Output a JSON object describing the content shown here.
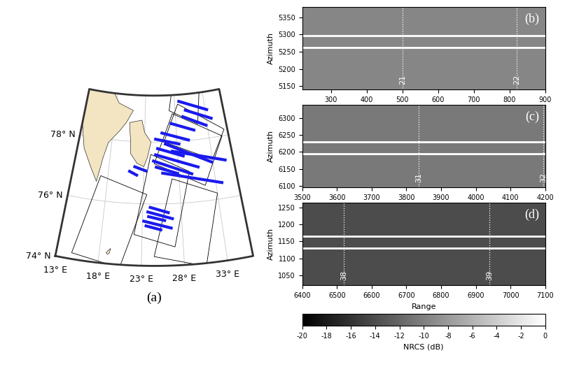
{
  "chart_data": [
    {
      "type": "map",
      "label": "(a)",
      "lon_lim": [
        13,
        36
      ],
      "lat_lim": [
        74,
        79.5
      ],
      "lat_ticks": [
        {
          "value": 74,
          "label": "74° N"
        },
        {
          "value": 76,
          "label": "76° N"
        },
        {
          "value": 78,
          "label": "78° N"
        }
      ],
      "lon_ticks": [
        {
          "value": 13,
          "label": "13° E"
        },
        {
          "value": 18,
          "label": "18° E"
        },
        {
          "value": 23,
          "label": "23° E"
        },
        {
          "value": 28,
          "label": "28° E"
        },
        {
          "value": 33,
          "label": "33° E"
        }
      ],
      "land": {
        "color": "#f3e4c2",
        "polygons": [
          [
            [
              13.0,
              79.5
            ],
            [
              17.5,
              79.5
            ],
            [
              18.5,
              79.2
            ],
            [
              21.0,
              79.0
            ],
            [
              20.0,
              78.6
            ],
            [
              19.0,
              78.3
            ],
            [
              17.5,
              77.9
            ],
            [
              17.0,
              77.4
            ],
            [
              16.5,
              76.6
            ],
            [
              15.5,
              77.0
            ],
            [
              14.0,
              77.6
            ],
            [
              13.5,
              78.0
            ],
            [
              13.0,
              78.4
            ]
          ],
          [
            [
              20.5,
              78.6
            ],
            [
              22.5,
              78.7
            ],
            [
              23.0,
              78.3
            ],
            [
              24.0,
              78.0
            ],
            [
              23.5,
              77.5
            ],
            [
              23.0,
              77.2
            ],
            [
              22.0,
              77.3
            ],
            [
              21.0,
              77.6
            ],
            [
              20.8,
              78.1
            ]
          ],
          [
            [
              18.8,
              74.35
            ],
            [
              19.3,
              74.5
            ],
            [
              19.2,
              74.35
            ],
            [
              19.0,
              74.3
            ]
          ]
        ]
      },
      "swaths": {
        "color": "#000000",
        "polygons": [
          [
            [
              22.0,
              75.0
            ],
            [
              27.0,
              74.6
            ],
            [
              29.5,
              77.0
            ],
            [
              24.0,
              77.6
            ]
          ],
          [
            [
              24.5,
              74.3
            ],
            [
              30.5,
              73.9
            ],
            [
              33.0,
              76.2
            ],
            [
              27.0,
              76.8
            ]
          ],
          [
            [
              24.5,
              77.3
            ],
            [
              31.5,
              76.5
            ],
            [
              35.0,
              78.0
            ],
            [
              27.5,
              78.9
            ]
          ],
          [
            [
              26.0,
              78.0
            ],
            [
              33.0,
              77.3
            ],
            [
              35.5,
              78.2
            ],
            [
              28.5,
              79.2
            ]
          ],
          [
            [
              14.8,
              74.2
            ],
            [
              20.5,
              73.9
            ],
            [
              23.5,
              76.3
            ],
            [
              17.0,
              76.8
            ]
          ],
          [
            [
              27.0,
              79.0
            ],
            [
              31.5,
              78.5
            ],
            [
              32.5,
              79.6
            ],
            [
              28.0,
              80.0
            ]
          ]
        ]
      },
      "tracks": {
        "color": "#1a1aee",
        "segments": [
          [
            [
              28.5,
              79.3
            ],
            [
              33.5,
              78.9
            ]
          ],
          [
            [
              29.5,
              79.0
            ],
            [
              34.0,
              78.6
            ]
          ],
          [
            [
              29.0,
              78.8
            ],
            [
              33.0,
              78.4
            ]
          ],
          [
            [
              27.0,
              78.6
            ],
            [
              31.0,
              78.3
            ]
          ],
          [
            [
              25.5,
              78.3
            ],
            [
              30.0,
              78.0
            ]
          ],
          [
            [
              24.5,
              78.1
            ],
            [
              28.5,
              77.9
            ]
          ],
          [
            [
              26.0,
              77.95
            ],
            [
              33.0,
              77.2
            ]
          ],
          [
            [
              24.8,
              77.8
            ],
            [
              29.0,
              77.5
            ]
          ],
          [
            [
              24.5,
              77.6
            ],
            [
              31.0,
              77.1
            ]
          ],
          [
            [
              24.2,
              77.4
            ],
            [
              30.0,
              76.9
            ]
          ],
          [
            [
              24.6,
              77.2
            ],
            [
              28.0,
              76.95
            ]
          ],
          [
            [
              25.5,
              77.0
            ],
            [
              34.0,
              76.5
            ]
          ],
          [
            [
              27.0,
              77.7
            ],
            [
              35.0,
              77.2
            ]
          ],
          [
            [
              21.5,
              77.2
            ],
            [
              23.5,
              77.05
            ]
          ],
          [
            [
              20.8,
              77.05
            ],
            [
              22.2,
              76.9
            ]
          ],
          [
            [
              23.8,
              75.9
            ],
            [
              26.5,
              75.7
            ]
          ],
          [
            [
              23.5,
              75.75
            ],
            [
              27.0,
              75.5
            ]
          ],
          [
            [
              23.6,
              75.6
            ],
            [
              26.0,
              75.45
            ]
          ],
          [
            [
              23.0,
              75.45
            ],
            [
              26.8,
              75.2
            ]
          ],
          [
            [
              23.3,
              75.3
            ],
            [
              25.5,
              75.15
            ]
          ]
        ]
      }
    },
    {
      "type": "image",
      "label": "(b)",
      "ylabel": "Azimuth",
      "mean_nrcs": -9.5,
      "xlim": [
        220,
        900
      ],
      "xticks": [
        300,
        400,
        500,
        600,
        700,
        800,
        900
      ],
      "ylim": [
        5140,
        5380
      ],
      "yticks": [
        5150,
        5200,
        5250,
        5300,
        5350
      ],
      "white_lines": [
        5297,
        5262
      ],
      "markers": [
        {
          "x": 500,
          "label": "21"
        },
        {
          "x": 820,
          "label": "22"
        }
      ]
    },
    {
      "type": "image",
      "label": "(c)",
      "ylabel": "Azimuth",
      "mean_nrcs": -10.5,
      "xlim": [
        3500,
        4200
      ],
      "xticks": [
        3500,
        3600,
        3700,
        3800,
        3900,
        4000,
        4100,
        4200
      ],
      "ylim": [
        6095,
        6340
      ],
      "yticks": [
        6100,
        6150,
        6200,
        6250,
        6300
      ],
      "white_lines": [
        6230,
        6195
      ],
      "markers": [
        {
          "x": 3835,
          "label": "31"
        },
        {
          "x": 4195,
          "label": "32"
        }
      ]
    },
    {
      "type": "image",
      "label": "(d)",
      "ylabel": "Azimuth",
      "xlabel": "Range",
      "mean_nrcs": -14,
      "xlim": [
        6400,
        7100
      ],
      "xticks": [
        6400,
        6500,
        6600,
        6700,
        6800,
        6900,
        7000,
        7100
      ],
      "ylim": [
        1020,
        1265
      ],
      "yticks": [
        1050,
        1100,
        1150,
        1200,
        1250
      ],
      "white_lines": [
        1165,
        1130
      ],
      "markers": [
        {
          "x": 6520,
          "label": "38"
        },
        {
          "x": 6940,
          "label": "39"
        }
      ]
    }
  ],
  "colorbar": {
    "label": "NRCS (dB)",
    "lim": [
      -20,
      0
    ],
    "ticks": [
      -20,
      -18,
      -16,
      -14,
      -12,
      -10,
      -8,
      -6,
      -4,
      -2,
      0
    ]
  }
}
